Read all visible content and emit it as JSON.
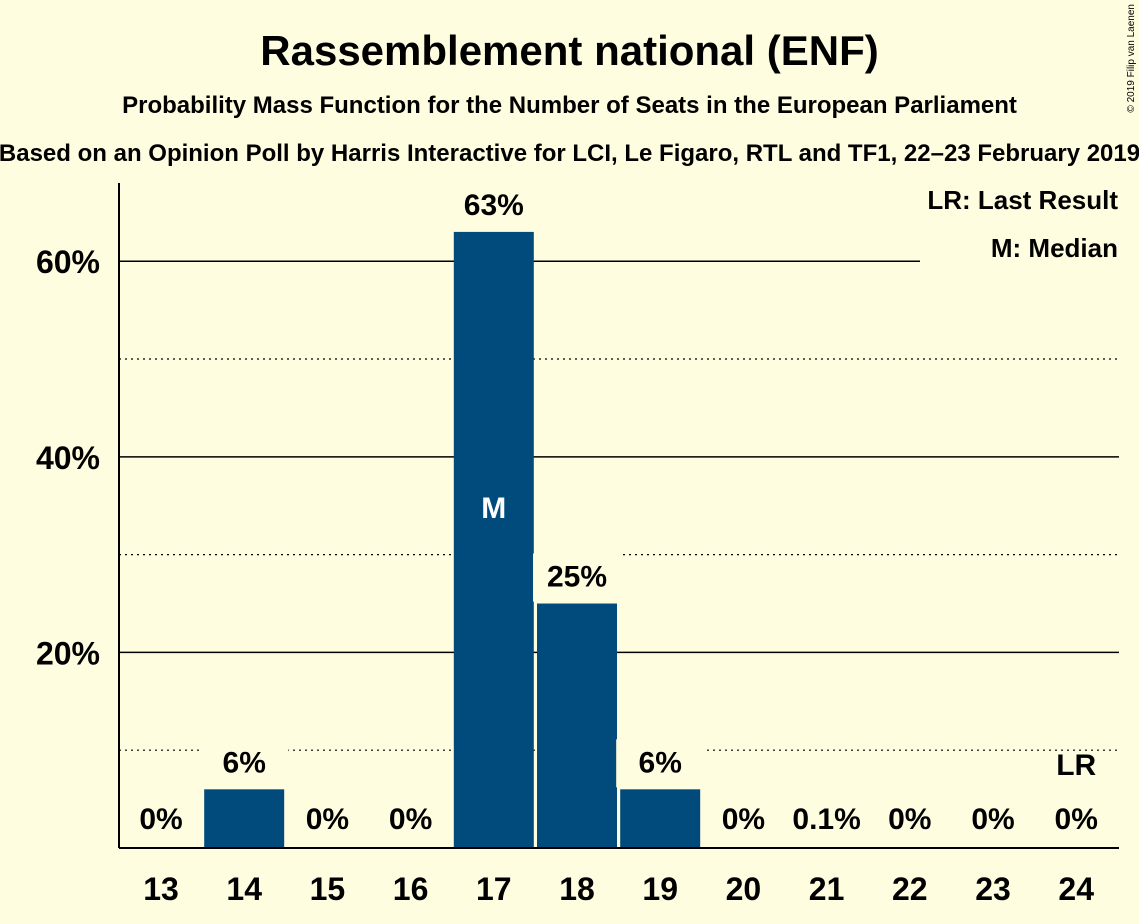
{
  "chart_data": {
    "type": "bar",
    "title": "Rassemblement national (ENF)",
    "subtitle": "Probability Mass Function for the Number of Seats in the European Parliament",
    "source": "Based on an Opinion Poll by Harris Interactive for LCI, Le Figaro, RTL and TF1, 22–23 February 2019",
    "copyright": "© 2019 Filip van Laenen",
    "categories": [
      "13",
      "14",
      "15",
      "16",
      "17",
      "18",
      "19",
      "20",
      "21",
      "22",
      "23",
      "24"
    ],
    "values": [
      0,
      6,
      0,
      0,
      63,
      25,
      6,
      0,
      0.1,
      0,
      0,
      0
    ],
    "value_labels": [
      "0%",
      "6%",
      "0%",
      "0%",
      "63%",
      "25%",
      "6%",
      "0%",
      "0.1%",
      "0%",
      "0%",
      "0%"
    ],
    "ylim": [
      0,
      68
    ],
    "yticks": [
      {
        "value": 20,
        "label": "20%"
      },
      {
        "value": 40,
        "label": "40%"
      },
      {
        "value": 60,
        "label": "60%"
      }
    ],
    "minor_gridlines": [
      10,
      30,
      50
    ],
    "median_category": "17",
    "median_marker": "M",
    "last_result_category": "24",
    "last_result_marker": "LR",
    "legend": {
      "placement": "top-right",
      "items": [
        "LR: Last Result",
        "M: Median"
      ]
    },
    "bar_color": "#004a7c",
    "background_color": "#fffde0"
  }
}
